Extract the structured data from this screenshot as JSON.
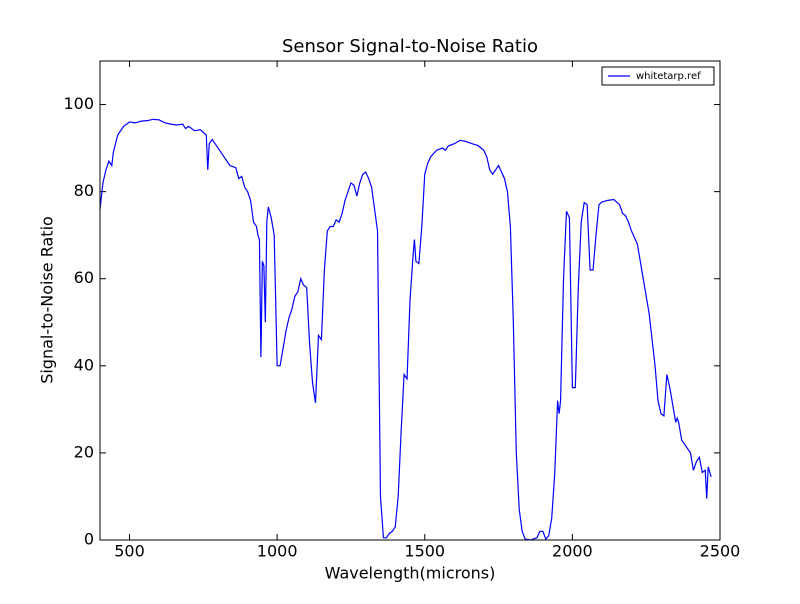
{
  "chart_data": {
    "type": "line",
    "title": "Sensor Signal-to-Noise Ratio",
    "x_label": "Wavelength(microns)",
    "y_label": "Signal-to-Noise Ratio",
    "xlim": [
      400,
      2500
    ],
    "ylim": [
      0,
      110
    ],
    "xticks": [
      500,
      1000,
      1500,
      2000,
      2500
    ],
    "yticks": [
      0,
      20,
      40,
      60,
      80,
      100
    ],
    "legend": "upper right",
    "x": [
      400,
      410,
      420,
      430,
      440,
      445,
      460,
      480,
      500,
      520,
      540,
      560,
      580,
      600,
      620,
      640,
      660,
      680,
      690,
      700,
      720,
      740,
      760,
      765,
      770,
      780,
      800,
      820,
      840,
      860,
      870,
      880,
      890,
      900,
      910,
      920,
      930,
      935,
      940,
      945,
      950,
      955,
      960,
      965,
      970,
      980,
      990,
      1000,
      1010,
      1020,
      1030,
      1040,
      1050,
      1060,
      1070,
      1080,
      1090,
      1100,
      1110,
      1120,
      1130,
      1140,
      1150,
      1160,
      1170,
      1180,
      1190,
      1200,
      1210,
      1220,
      1230,
      1240,
      1250,
      1260,
      1270,
      1280,
      1290,
      1300,
      1310,
      1320,
      1330,
      1340,
      1350,
      1360,
      1370,
      1380,
      1390,
      1400,
      1410,
      1420,
      1430,
      1440,
      1450,
      1460,
      1465,
      1470,
      1480,
      1490,
      1500,
      1510,
      1520,
      1540,
      1560,
      1570,
      1580,
      1600,
      1620,
      1640,
      1660,
      1680,
      1700,
      1710,
      1720,
      1730,
      1740,
      1750,
      1760,
      1770,
      1780,
      1790,
      1800,
      1810,
      1820,
      1830,
      1840,
      1860,
      1870,
      1880,
      1890,
      1900,
      1910,
      1920,
      1930,
      1940,
      1950,
      1955,
      1960,
      1970,
      1980,
      1990,
      2000,
      2010,
      2020,
      2030,
      2040,
      2050,
      2060,
      2070,
      2080,
      2090,
      2100,
      2120,
      2140,
      2160,
      2170,
      2180,
      2190,
      2200,
      2220,
      2240,
      2260,
      2280,
      2290,
      2300,
      2310,
      2320,
      2330,
      2350,
      2355,
      2360,
      2370,
      2380,
      2390,
      2400,
      2410,
      2420,
      2430,
      2440,
      2450,
      2455,
      2460,
      2470
    ],
    "series": [
      {
        "name": "whitetarp.ref",
        "color": "#0000ff",
        "values": [
          76,
          82,
          85,
          87,
          86,
          89,
          93,
          95,
          96,
          95.8,
          96.2,
          96.3,
          96.6,
          96.5,
          95.8,
          95.5,
          95.3,
          95.5,
          94.5,
          95,
          94,
          94.2,
          93,
          85,
          91,
          92,
          90,
          88,
          86,
          85.5,
          83,
          83.5,
          81,
          80,
          78,
          73,
          72,
          70,
          69,
          42,
          64,
          63,
          50,
          73,
          76.5,
          74,
          70,
          40,
          40,
          44,
          48,
          51,
          53,
          56,
          57,
          60,
          58.5,
          58,
          45,
          36,
          31.5,
          47,
          46,
          62,
          71,
          72,
          72,
          73.5,
          73,
          75,
          78,
          80,
          82,
          81.5,
          79,
          82,
          84,
          84.5,
          83,
          81,
          76,
          71,
          10,
          0.5,
          0.5,
          1.5,
          2,
          3,
          10,
          25,
          38,
          37,
          55,
          65,
          69,
          64,
          63.5,
          72,
          84,
          86.5,
          88,
          89.5,
          90,
          89.5,
          90.5,
          91,
          91.8,
          91.5,
          91,
          90.6,
          89.5,
          88,
          85,
          84,
          85,
          86,
          84.5,
          83,
          80,
          72,
          50,
          20,
          7,
          2,
          0.2,
          0,
          0.3,
          0.5,
          2,
          2,
          0.2,
          1,
          5,
          15,
          32,
          29,
          32,
          60,
          75.5,
          74,
          35,
          35,
          58,
          73,
          77.5,
          77,
          62,
          62,
          70,
          77,
          77.6,
          78,
          78.2,
          77,
          75,
          74.5,
          73,
          71,
          68,
          60,
          52,
          40,
          32,
          29,
          28.5,
          38,
          35,
          27,
          28,
          27,
          23,
          22,
          21,
          20,
          16,
          18,
          19,
          15.5,
          16,
          9.5,
          16.8,
          14.5
        ]
      }
    ]
  }
}
